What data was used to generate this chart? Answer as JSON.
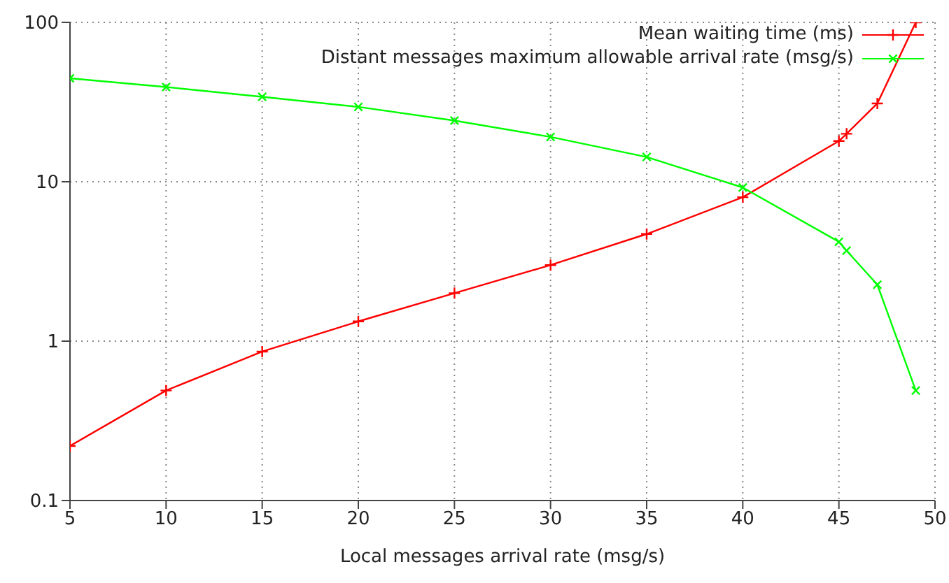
{
  "chart_data": {
    "type": "line",
    "xlabel": "Local messages arrival rate (msg/s)",
    "x": [
      5,
      10,
      15,
      20,
      25,
      30,
      35,
      40,
      45,
      45.4,
      47,
      49
    ],
    "series": [
      {
        "name": "Mean waiting time (ms)",
        "color": "#ff0000",
        "marker": "cross",
        "values": [
          0.22,
          0.49,
          0.86,
          1.33,
          2.0,
          3.0,
          4.7,
          8.0,
          18,
          20,
          31,
          100
        ]
      },
      {
        "name": "Distant messages maximum allowable arrival rate (msg/s)",
        "color": "#00ff00",
        "marker": "cross",
        "values": [
          44.6,
          39.3,
          34.1,
          29.5,
          24.2,
          19.1,
          14.3,
          9.2,
          4.2,
          3.7,
          2.26,
          0.49
        ]
      }
    ],
    "xlim": [
      5,
      50
    ],
    "xticks": [
      5,
      10,
      15,
      20,
      25,
      30,
      35,
      40,
      45,
      50
    ],
    "ylim": [
      0.1,
      100
    ],
    "yticks": [
      0.1,
      1,
      10,
      100
    ],
    "log": "y",
    "grid": true,
    "legend": "top right",
    "line_style": "solid"
  }
}
